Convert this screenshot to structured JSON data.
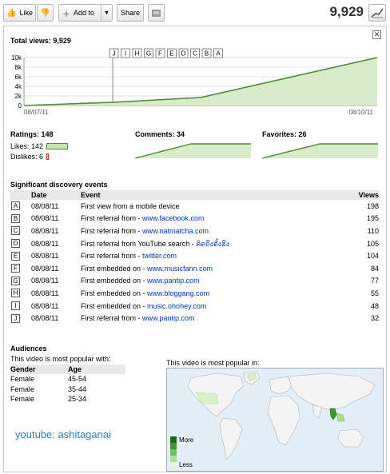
{
  "toolbar": {
    "like_label": "Like",
    "add_to_label": "Add to",
    "share_label": "Share",
    "view_count": "9,929"
  },
  "stats": {
    "total_views_label": "Total views: 9,929",
    "close_glyph": "✕",
    "chart": {
      "y_ticks": [
        "10k",
        "8k",
        "6k",
        "4k",
        "2k",
        "0"
      ],
      "x_start_label": "08/07/11",
      "x_end_label": "08/10/11",
      "markers": [
        "J",
        "I",
        "H",
        "G",
        "F",
        "E",
        "D",
        "C",
        "B",
        "A"
      ],
      "fill_color": "#d8ecc9",
      "line_color": "#4e8a3a"
    },
    "ratings": {
      "title": "Ratings: 148",
      "likes_label": "Likes: 142",
      "dislikes_label": "Dislikes: 6",
      "likes": 142,
      "dislikes": 6
    },
    "comments_label": "Comments: 34",
    "favorites_label": "Favorites: 26"
  },
  "events": {
    "title": "Significant discovery events",
    "headers": {
      "date": "Date",
      "event": "Event",
      "views": "Views"
    },
    "rows": [
      {
        "mark": "A",
        "date": "08/08/11",
        "text": "First view from a mobile device",
        "link": "",
        "views": "198"
      },
      {
        "mark": "B",
        "date": "08/08/11",
        "text": "First referral from - ",
        "link": "www.facebook.com",
        "views": "195"
      },
      {
        "mark": "C",
        "date": "08/08/11",
        "text": "First referral from - ",
        "link": "www.natmatcha.com",
        "views": "110"
      },
      {
        "mark": "D",
        "date": "08/08/11",
        "text": "First referral from YouTube search - ",
        "link": "คิดถึงตั้งฮึง",
        "views": "105"
      },
      {
        "mark": "E",
        "date": "08/08/11",
        "text": "First referral from - ",
        "link": "twitter.com",
        "views": "104"
      },
      {
        "mark": "F",
        "date": "08/08/11",
        "text": "First embedded on - ",
        "link": "www.musicfann.com",
        "views": "84"
      },
      {
        "mark": "G",
        "date": "08/08/11",
        "text": "First embedded on - ",
        "link": "www.pantip.com",
        "views": "77"
      },
      {
        "mark": "H",
        "date": "08/08/11",
        "text": "First embedded on - ",
        "link": "www.bloggang.com",
        "views": "55"
      },
      {
        "mark": "I",
        "date": "08/08/11",
        "text": "First embedded on - ",
        "link": "music.ohohey.com",
        "views": "48"
      },
      {
        "mark": "J",
        "date": "08/08/11",
        "text": "First referral from - ",
        "link": "www.pantip.com",
        "views": "32"
      }
    ]
  },
  "audiences": {
    "title": "Audiences",
    "subtitle": "This video is most popular with:",
    "headers": {
      "gender": "Gender",
      "age": "Age"
    },
    "rows": [
      {
        "gender": "Female",
        "age": "45-54"
      },
      {
        "gender": "Female",
        "age": "35-44"
      },
      {
        "gender": "Female",
        "age": "25-34"
      }
    ]
  },
  "map": {
    "subtitle": "This video is most popular in:",
    "legend_more": "More",
    "legend_less": "Less",
    "legend_colors": [
      "#1e6b12",
      "#3c9a2a",
      "#71c05a",
      "#aedd98"
    ]
  },
  "watermark": "youtube: ashitaganai"
}
